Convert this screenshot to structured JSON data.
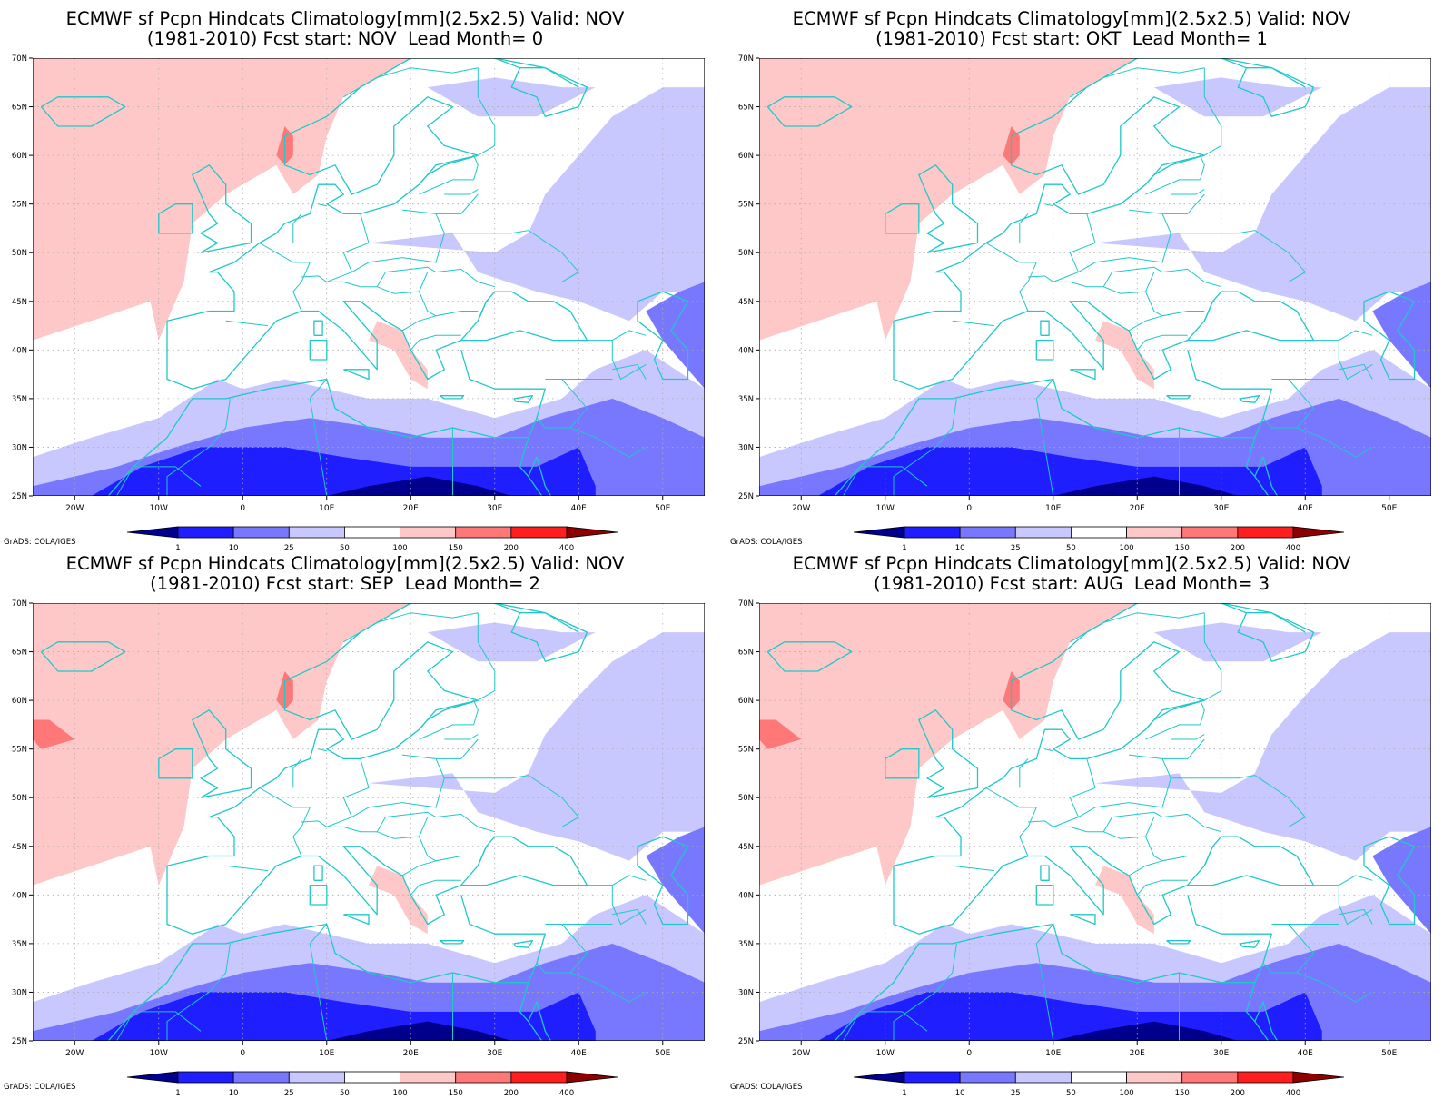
{
  "panels": [
    {
      "title_line1": "ECMWF sf Pcpn Hindcats Climatology[mm](2.5x2.5) Valid: NOV",
      "title_line2": "(1981-2010) Fcst start: NOV  Lead Month= 0",
      "fcst_start": "NOV",
      "lead_month": 0
    },
    {
      "title_line1": "ECMWF sf Pcpn Hindcats Climatology[mm](2.5x2.5) Valid: NOV",
      "title_line2": "(1981-2010) Fcst start: OKT  Lead Month= 1",
      "fcst_start": "OKT",
      "lead_month": 1
    },
    {
      "title_line1": "ECMWF sf Pcpn Hindcats Climatology[mm](2.5x2.5) Valid: NOV",
      "title_line2": "(1981-2010) Fcst start: SEP  Lead Month= 2",
      "fcst_start": "SEP",
      "lead_month": 2
    },
    {
      "title_line1": "ECMWF sf Pcpn Hindcats Climatology[mm](2.5x2.5) Valid: NOV",
      "title_line2": "(1981-2010) Fcst start: AUG  Lead Month= 3",
      "fcst_start": "AUG",
      "lead_month": 3
    }
  ],
  "map": {
    "lat_labels": [
      "70N",
      "65N",
      "60N",
      "55N",
      "50N",
      "45N",
      "40N",
      "35N",
      "30N",
      "25N"
    ],
    "lon_labels": [
      "20W",
      "10W",
      "0",
      "10E",
      "20E",
      "30E",
      "40E",
      "50E"
    ],
    "lat_range": [
      25,
      70
    ],
    "lon_range": [
      -25,
      55
    ],
    "grid": true,
    "coastline_color": "#20c8c8",
    "grid_color": "#aaaaaa"
  },
  "colorbar": {
    "labels": [
      "1",
      "10",
      "25",
      "50",
      "100",
      "150",
      "200",
      "400"
    ],
    "colors": [
      "#00008c",
      "#1e1eff",
      "#7878ff",
      "#c8c8ff",
      "#ffffff",
      "#ffc8c8",
      "#ff7878",
      "#ff1e1e",
      "#8c0000"
    ]
  },
  "credit": "GrADS: COLA/IGES"
}
